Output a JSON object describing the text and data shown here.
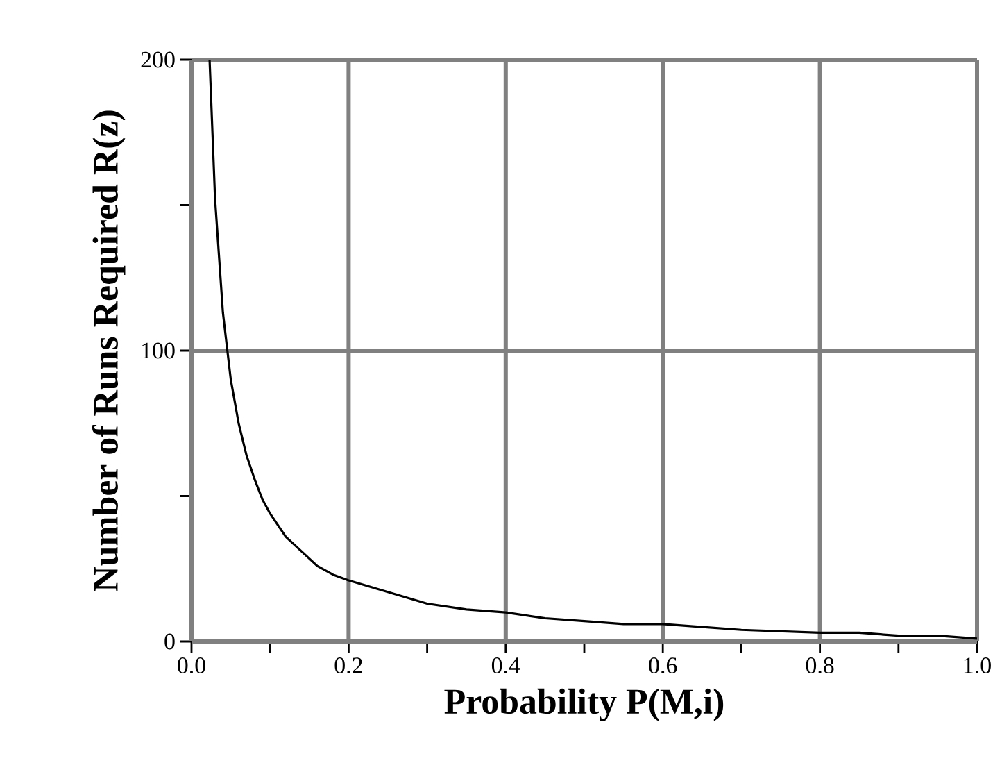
{
  "chart_data": {
    "type": "line",
    "xlabel": "Probability P(M,i)",
    "ylabel": "Number of Runs Required R(z)",
    "x": [
      0.023,
      0.03,
      0.04,
      0.05,
      0.06,
      0.07,
      0.08,
      0.09,
      0.1,
      0.12,
      0.14,
      0.16,
      0.18,
      0.2,
      0.25,
      0.3,
      0.35,
      0.4,
      0.45,
      0.5,
      0.55,
      0.6,
      0.65,
      0.7,
      0.8,
      0.85,
      0.9,
      0.95,
      1.0
    ],
    "series": [
      {
        "color": "#000000",
        "values": [
          200,
          152,
          113,
          90,
          75,
          64,
          56,
          49,
          44,
          36,
          31,
          26,
          23,
          21,
          17,
          13,
          11,
          10,
          8,
          7,
          6,
          6,
          5,
          4,
          3,
          3,
          2,
          2,
          1
        ]
      }
    ],
    "xlim": [
      0,
      1.0
    ],
    "ylim": [
      0,
      200
    ],
    "xticks": [
      {
        "value": 0,
        "label": "0.0"
      },
      {
        "value": 0.1,
        "label": null
      },
      {
        "value": 0.2,
        "label": "0.2"
      },
      {
        "value": 0.3,
        "label": null
      },
      {
        "value": 0.4,
        "label": "0.4"
      },
      {
        "value": 0.5,
        "label": null
      },
      {
        "value": 0.6,
        "label": "0.6"
      },
      {
        "value": 0.7,
        "label": null
      },
      {
        "value": 0.8,
        "label": "0.8"
      },
      {
        "value": 0.9,
        "label": null
      },
      {
        "value": 1.0,
        "label": "1.0"
      }
    ],
    "yticks": [
      0,
      {
        "value": 50,
        "label": null
      },
      100,
      {
        "value": 150,
        "label": null
      },
      200
    ],
    "grid": true,
    "marker": "none",
    "line_style": "solid"
  }
}
